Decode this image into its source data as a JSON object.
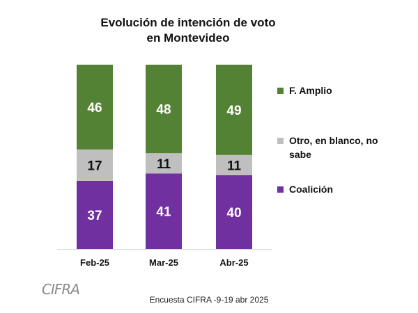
{
  "chart_data": {
    "type": "bar",
    "stacked": true,
    "title_lines": [
      "Evolución de intención de voto",
      "en Montevideo"
    ],
    "categories": [
      "Feb-25",
      "Mar-25",
      "Abr-25"
    ],
    "series": [
      {
        "name": "Coalición",
        "values": [
          37,
          41,
          40
        ],
        "color": "#7030a0"
      },
      {
        "name": "Otro, en blanco, no sabe",
        "values": [
          17,
          11,
          11
        ],
        "color": "#bfbfbf"
      },
      {
        "name": "F. Amplio",
        "values": [
          46,
          48,
          49
        ],
        "color": "#548235"
      }
    ],
    "ylim": [
      0,
      100
    ],
    "grid": false,
    "legend_position": "right"
  },
  "legend": {
    "items": [
      {
        "label": "F. Amplio",
        "color": "#548235"
      },
      {
        "label": "Otro, en blanco, no sabe",
        "color": "#bfbfbf"
      },
      {
        "label": "Coalición",
        "color": "#7030a0"
      }
    ]
  },
  "logo_text": "CIFRA",
  "source": "Encuesta CIFRA -9-19 abr 2025"
}
